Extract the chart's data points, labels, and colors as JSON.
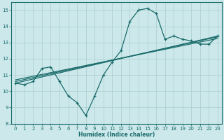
{
  "xlabel": "Humidex (Indice chaleur)",
  "xlim": [
    -0.5,
    23.5
  ],
  "ylim": [
    8,
    15.5
  ],
  "yticks": [
    8,
    9,
    10,
    11,
    12,
    13,
    14,
    15
  ],
  "xticks": [
    0,
    1,
    2,
    3,
    4,
    5,
    6,
    7,
    8,
    9,
    10,
    11,
    12,
    13,
    14,
    15,
    16,
    17,
    18,
    19,
    20,
    21,
    22,
    23
  ],
  "background_color": "#cce8eb",
  "grid_color": "#aacccc",
  "line_color": "#1a6b6b",
  "line1_x": [
    0,
    1,
    2,
    3,
    4,
    5,
    6,
    7,
    8,
    9,
    10,
    11,
    12,
    13,
    14,
    15,
    16,
    17,
    18,
    19,
    20,
    21,
    22,
    23
  ],
  "line1_y": [
    10.5,
    10.4,
    10.6,
    11.4,
    11.5,
    10.6,
    9.7,
    9.3,
    8.5,
    9.7,
    11.0,
    11.8,
    12.5,
    14.3,
    15.0,
    15.1,
    14.8,
    13.2,
    13.4,
    13.2,
    13.1,
    12.9,
    12.9,
    13.4
  ],
  "line2_x": [
    0,
    23
  ],
  "line2_y": [
    10.5,
    13.4
  ],
  "line3_x": [
    0,
    23
  ],
  "line3_y": [
    10.6,
    13.35
  ],
  "line4_x": [
    0,
    23
  ],
  "line4_y": [
    10.7,
    13.25
  ]
}
